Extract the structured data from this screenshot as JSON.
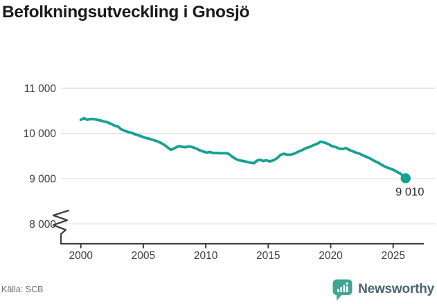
{
  "header": {
    "title": "Befolkningsutveckling i Gnosjö"
  },
  "footer": {
    "source": "Källa: SCB",
    "brand": "Newsworthy"
  },
  "colors": {
    "line": "#16a193",
    "grid": "#e0e0e0",
    "axis": "#3f3f3f",
    "tick_text": "#3d3d3d",
    "end_label_text": "#2b2b2b",
    "title_text": "#1a1a1a",
    "source_text": "#6e6e6e",
    "logo_icon": "#41a595",
    "logo_text": "#4a6572"
  },
  "chart_data": {
    "type": "line",
    "title": "Befolkningsutveckling i Gnosjö",
    "source": "Källa: SCB",
    "xlabel": "",
    "ylabel": "",
    "grid": "horizontal",
    "y_axis_break": true,
    "ylim": [
      8000,
      11000
    ],
    "xlim": [
      2000,
      2026
    ],
    "x_ticks": [
      2000,
      2005,
      2010,
      2015,
      2020,
      2025
    ],
    "y_ticks": [
      {
        "value": 8000,
        "label": "8 000"
      },
      {
        "value": 9000,
        "label": "9 000"
      },
      {
        "value": 10000,
        "label": "10 000"
      },
      {
        "value": 11000,
        "label": "11 000"
      }
    ],
    "series": [
      {
        "name": "Befolkning",
        "end_label": "9 010",
        "end_value": 9010,
        "points": [
          [
            2000.0,
            10300
          ],
          [
            2000.25,
            10338
          ],
          [
            2000.5,
            10303
          ],
          [
            2000.75,
            10318
          ],
          [
            2001.0,
            10318
          ],
          [
            2001.3,
            10301
          ],
          [
            2001.6,
            10285
          ],
          [
            2001.85,
            10265
          ],
          [
            2002.1,
            10250
          ],
          [
            2002.4,
            10214
          ],
          [
            2002.7,
            10173
          ],
          [
            2003.0,
            10148
          ],
          [
            2003.2,
            10097
          ],
          [
            2003.5,
            10060
          ],
          [
            2003.8,
            10031
          ],
          [
            2004.1,
            10011
          ],
          [
            2004.35,
            9980
          ],
          [
            2004.6,
            9960
          ],
          [
            2004.9,
            9930
          ],
          [
            2005.2,
            9900
          ],
          [
            2005.5,
            9880
          ],
          [
            2005.8,
            9855
          ],
          [
            2006.1,
            9830
          ],
          [
            2006.4,
            9790
          ],
          [
            2006.7,
            9745
          ],
          [
            2007.0,
            9680
          ],
          [
            2007.2,
            9640
          ],
          [
            2007.45,
            9665
          ],
          [
            2007.7,
            9705
          ],
          [
            2007.9,
            9720
          ],
          [
            2008.1,
            9705
          ],
          [
            2008.4,
            9695
          ],
          [
            2008.65,
            9715
          ],
          [
            2008.9,
            9700
          ],
          [
            2009.2,
            9670
          ],
          [
            2009.5,
            9630
          ],
          [
            2009.8,
            9600
          ],
          [
            2010.1,
            9575
          ],
          [
            2010.3,
            9592
          ],
          [
            2010.6,
            9565
          ],
          [
            2010.9,
            9570
          ],
          [
            2011.2,
            9560
          ],
          [
            2011.5,
            9565
          ],
          [
            2011.8,
            9555
          ],
          [
            2012.1,
            9490
          ],
          [
            2012.4,
            9435
          ],
          [
            2012.7,
            9405
          ],
          [
            2013.0,
            9390
          ],
          [
            2013.3,
            9372
          ],
          [
            2013.6,
            9352
          ],
          [
            2013.85,
            9343
          ],
          [
            2014.1,
            9398
          ],
          [
            2014.3,
            9420
          ],
          [
            2014.6,
            9390
          ],
          [
            2014.85,
            9408
          ],
          [
            2015.1,
            9382
          ],
          [
            2015.4,
            9405
          ],
          [
            2015.7,
            9452
          ],
          [
            2016.0,
            9528
          ],
          [
            2016.25,
            9552
          ],
          [
            2016.5,
            9530
          ],
          [
            2016.8,
            9532
          ],
          [
            2017.1,
            9555
          ],
          [
            2017.4,
            9595
          ],
          [
            2017.7,
            9630
          ],
          [
            2018.0,
            9672
          ],
          [
            2018.3,
            9700
          ],
          [
            2018.6,
            9738
          ],
          [
            2018.9,
            9768
          ],
          [
            2019.2,
            9818
          ],
          [
            2019.5,
            9798
          ],
          [
            2019.8,
            9765
          ],
          [
            2020.1,
            9722
          ],
          [
            2020.4,
            9700
          ],
          [
            2020.7,
            9662
          ],
          [
            2021.0,
            9655
          ],
          [
            2021.2,
            9680
          ],
          [
            2021.45,
            9640
          ],
          [
            2021.7,
            9612
          ],
          [
            2022.0,
            9578
          ],
          [
            2022.3,
            9555
          ],
          [
            2022.6,
            9512
          ],
          [
            2022.9,
            9478
          ],
          [
            2023.2,
            9440
          ],
          [
            2023.5,
            9392
          ],
          [
            2023.8,
            9352
          ],
          [
            2024.1,
            9305
          ],
          [
            2024.4,
            9258
          ],
          [
            2024.7,
            9228
          ],
          [
            2025.0,
            9198
          ],
          [
            2025.3,
            9152
          ],
          [
            2025.6,
            9108
          ],
          [
            2025.8,
            9062
          ],
          [
            2026.0,
            9010
          ]
        ]
      }
    ]
  }
}
